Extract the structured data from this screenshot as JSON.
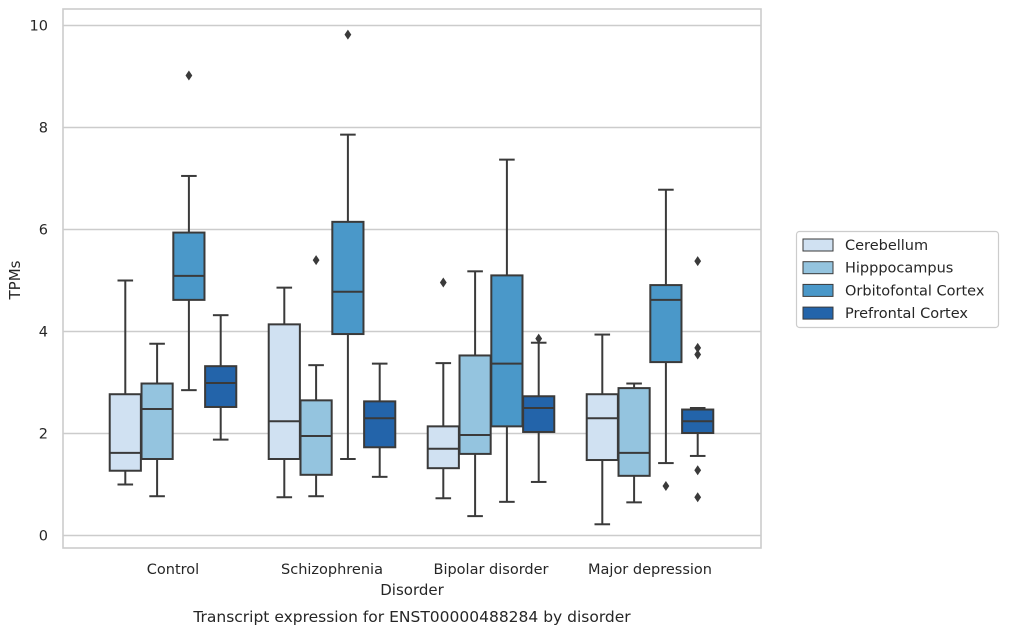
{
  "chart_data": {
    "type": "box",
    "xlabel": "Disorder",
    "ylabel": "TPMs",
    "caption": "Transcript expression for ENST00000488284 by disorder",
    "ylim": [
      -0.2,
      10.3
    ],
    "yticks": [
      0,
      2,
      4,
      6,
      8,
      10
    ],
    "grid": "horizontal",
    "legend_position": "right",
    "categories": [
      "Control",
      "Schizophrenia",
      "Bipolar disorder",
      "Major depression"
    ],
    "series": [
      {
        "name": "Cerebellum",
        "color": "#d0e1f2",
        "boxes": [
          {
            "whislo": 1.0,
            "q1": 1.27,
            "med": 1.62,
            "q3": 2.77,
            "whishi": 5.0,
            "fliers": []
          },
          {
            "whislo": 0.75,
            "q1": 1.5,
            "med": 2.24,
            "q3": 4.14,
            "whishi": 4.86,
            "fliers": []
          },
          {
            "whislo": 0.73,
            "q1": 1.32,
            "med": 1.7,
            "q3": 2.14,
            "whishi": 3.38,
            "fliers": [
              4.96
            ]
          },
          {
            "whislo": 0.22,
            "q1": 1.48,
            "med": 2.3,
            "q3": 2.77,
            "whishi": 3.94,
            "fliers": []
          }
        ]
      },
      {
        "name": "Hipppocampus",
        "color": "#94c4df",
        "boxes": [
          {
            "whislo": 0.77,
            "q1": 1.5,
            "med": 2.48,
            "q3": 2.98,
            "whishi": 3.76,
            "fliers": []
          },
          {
            "whislo": 0.77,
            "q1": 1.19,
            "med": 1.95,
            "q3": 2.65,
            "whishi": 3.34,
            "fliers": [
              5.4
            ]
          },
          {
            "whislo": 0.38,
            "q1": 1.6,
            "med": 1.97,
            "q3": 3.53,
            "whishi": 5.18,
            "fliers": []
          },
          {
            "whislo": 0.65,
            "q1": 1.17,
            "med": 1.62,
            "q3": 2.89,
            "whishi": 2.98,
            "fliers": []
          }
        ]
      },
      {
        "name": "Orbitofontal Cortex",
        "color": "#4a98c9",
        "boxes": [
          {
            "whislo": 2.85,
            "q1": 4.62,
            "med": 5.09,
            "q3": 5.94,
            "whishi": 7.05,
            "fliers": [
              9.02
            ]
          },
          {
            "whislo": 1.5,
            "q1": 3.95,
            "med": 4.78,
            "q3": 6.15,
            "whishi": 7.86,
            "fliers": [
              9.82
            ]
          },
          {
            "whislo": 0.66,
            "q1": 2.14,
            "med": 3.37,
            "q3": 5.1,
            "whishi": 7.37,
            "fliers": []
          },
          {
            "whislo": 1.42,
            "q1": 3.4,
            "med": 4.62,
            "q3": 4.91,
            "whishi": 6.78,
            "fliers": [
              0.97
            ]
          }
        ]
      },
      {
        "name": "Prefrontal Cortex",
        "color": "#2364aa",
        "boxes": [
          {
            "whislo": 1.88,
            "q1": 2.52,
            "med": 2.99,
            "q3": 3.32,
            "whishi": 4.32,
            "fliers": []
          },
          {
            "whislo": 1.15,
            "q1": 1.73,
            "med": 2.3,
            "q3": 2.63,
            "whishi": 3.37,
            "fliers": []
          },
          {
            "whislo": 1.05,
            "q1": 2.03,
            "med": 2.5,
            "q3": 2.73,
            "whishi": 3.78,
            "fliers": [
              3.86
            ]
          },
          {
            "whislo": 1.56,
            "q1": 2.01,
            "med": 2.24,
            "q3": 2.47,
            "whishi": 2.5,
            "fliers": [
              0.75,
              1.28,
              3.55,
              3.68,
              5.38
            ]
          }
        ]
      }
    ]
  }
}
